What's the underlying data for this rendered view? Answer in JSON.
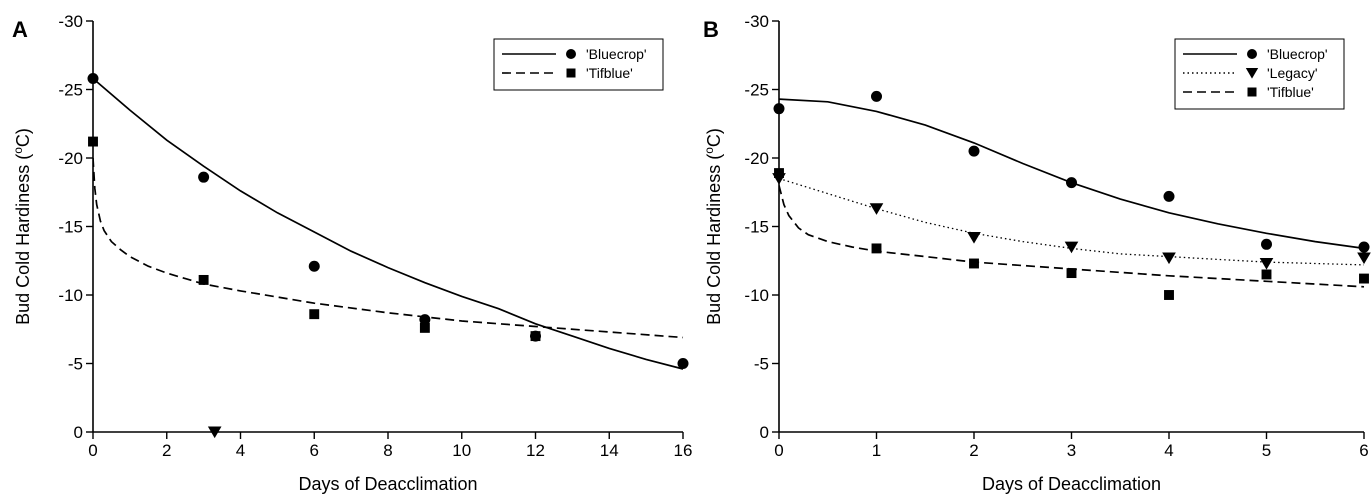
{
  "chart_data": [
    {
      "type": "scatter",
      "panel_label": "A",
      "xlabel": "Days of Deacclimation",
      "ylabel": "Bud Cold Hardiness (",
      "ylabel_sup": "o",
      "ylabel_end": "C)",
      "xlim": [
        0,
        16
      ],
      "ylim": [
        0,
        -30
      ],
      "xticks": [
        0,
        2,
        4,
        6,
        8,
        10,
        12,
        14,
        16
      ],
      "yticks": [
        0,
        -5,
        -10,
        -15,
        -20,
        -25,
        -30
      ],
      "ytick_labels": [
        "0",
        "-5",
        "-10",
        "-15",
        "-20",
        "-25",
        "-30"
      ],
      "grid": false,
      "legend_position": "top-right",
      "series": [
        {
          "name": "'Bluecrop'",
          "marker": "circle",
          "line_style": "solid",
          "x": [
            0,
            3,
            6,
            9,
            12,
            16
          ],
          "y": [
            -25.8,
            -18.6,
            -12.1,
            -8.2,
            -7.0,
            -5.0
          ],
          "fit_x": [
            0,
            1,
            2,
            3,
            4,
            5,
            6,
            7,
            8,
            9,
            10,
            11,
            12,
            13,
            14,
            15,
            16
          ],
          "fit_y": [
            -25.8,
            -23.5,
            -21.3,
            -19.4,
            -17.6,
            -16.0,
            -14.6,
            -13.2,
            -12.0,
            -10.9,
            -9.9,
            -9.0,
            -7.9,
            -7.0,
            -6.1,
            -5.3,
            -4.6
          ]
        },
        {
          "name": "'Tifblue'",
          "marker": "square",
          "line_style": "dashed",
          "x": [
            0,
            3,
            6,
            9,
            12
          ],
          "y": [
            -21.2,
            -11.1,
            -8.6,
            -7.6,
            -7.0
          ],
          "fit_x": [
            0,
            0.05,
            0.1,
            0.2,
            0.3,
            0.5,
            0.75,
            1,
            1.5,
            2,
            3,
            4,
            6,
            8,
            10,
            12,
            14,
            16
          ],
          "fit_y": [
            -20.0,
            -17.8,
            -16.6,
            -15.4,
            -14.7,
            -13.9,
            -13.3,
            -12.8,
            -12.1,
            -11.6,
            -10.8,
            -10.3,
            -9.4,
            -8.7,
            -8.1,
            -7.7,
            -7.3,
            -6.9
          ]
        },
        {
          "name": "",
          "marker": "triangle-down",
          "line_style": "none",
          "x": [
            3.3
          ],
          "y": [
            0
          ]
        }
      ]
    },
    {
      "type": "scatter",
      "panel_label": "B",
      "xlabel": "Days of Deacclimation",
      "ylabel": "Bud Cold Hardiness (",
      "ylabel_sup": "o",
      "ylabel_end": "C)",
      "xlim": [
        0,
        6
      ],
      "ylim": [
        0,
        -30
      ],
      "xticks": [
        0,
        1,
        2,
        3,
        4,
        5,
        6
      ],
      "yticks": [
        0,
        -5,
        -10,
        -15,
        -20,
        -25,
        -30
      ],
      "ytick_labels": [
        "0",
        "-5",
        "-10",
        "-15",
        "-20",
        "-25",
        "-30"
      ],
      "grid": false,
      "legend_position": "top-right",
      "series": [
        {
          "name": "'Bluecrop'",
          "marker": "circle",
          "line_style": "solid",
          "x": [
            0,
            1,
            2,
            3,
            4,
            5,
            6
          ],
          "y": [
            -23.6,
            -24.5,
            -20.5,
            -18.2,
            -17.2,
            -13.7,
            -13.5
          ],
          "fit_x": [
            0,
            0.5,
            1,
            1.5,
            2,
            2.5,
            3,
            3.5,
            4,
            4.5,
            5,
            5.5,
            6
          ],
          "fit_y": [
            -24.3,
            -24.1,
            -23.4,
            -22.4,
            -21.1,
            -19.6,
            -18.2,
            -17.0,
            -16.0,
            -15.2,
            -14.5,
            -13.9,
            -13.4
          ]
        },
        {
          "name": "'Legacy'",
          "marker": "triangle-down",
          "line_style": "dotted",
          "x": [
            0,
            1,
            2,
            3,
            4,
            5,
            6
          ],
          "y": [
            -18.5,
            -16.3,
            -14.2,
            -13.5,
            -12.7,
            -12.3,
            -12.7
          ],
          "fit_x": [
            0,
            0.5,
            1,
            1.5,
            2,
            2.5,
            3,
            3.5,
            4,
            4.5,
            5,
            5.5,
            6
          ],
          "fit_y": [
            -18.5,
            -17.4,
            -16.3,
            -15.3,
            -14.5,
            -13.9,
            -13.4,
            -13.0,
            -12.8,
            -12.6,
            -12.4,
            -12.3,
            -12.2
          ]
        },
        {
          "name": "'Tifblue'",
          "marker": "square",
          "line_style": "dashed",
          "x": [
            0,
            1,
            2,
            3,
            4,
            5,
            6
          ],
          "y": [
            -18.9,
            -13.4,
            -12.3,
            -11.6,
            -10.0,
            -11.5,
            -11.2
          ],
          "fit_x": [
            0,
            0.05,
            0.1,
            0.2,
            0.3,
            0.5,
            0.75,
            1,
            1.5,
            2,
            3,
            4,
            5,
            6
          ],
          "fit_y": [
            -18.0,
            -16.6,
            -15.8,
            -14.9,
            -14.4,
            -13.9,
            -13.5,
            -13.2,
            -12.8,
            -12.4,
            -11.9,
            -11.4,
            -11.0,
            -10.6
          ]
        }
      ]
    }
  ]
}
